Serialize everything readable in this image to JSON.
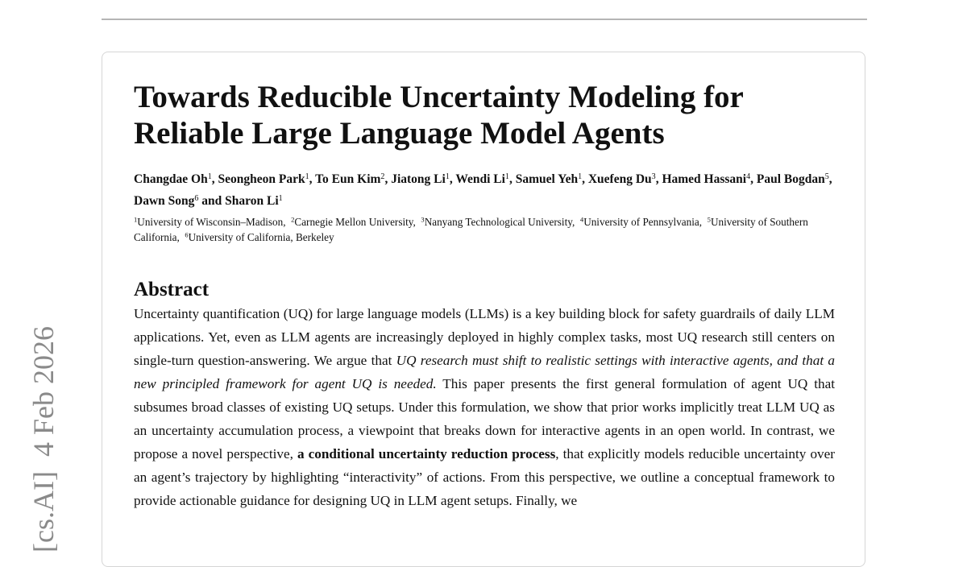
{
  "stamp": "[cs.AI]  4 Feb 2026",
  "title": {
    "line1": "Towards Reducible Uncertainty Modeling for",
    "line2": "Reliable Large Language Model Agents"
  },
  "authors": [
    {
      "name": "Changdae Oh",
      "aff": "1",
      "sep": ", "
    },
    {
      "name": "Seongheon Park",
      "aff": "1",
      "sep": ", "
    },
    {
      "name": "To Eun Kim",
      "aff": "2",
      "sep": ", "
    },
    {
      "name": "Jiatong Li",
      "aff": "1",
      "sep": ", "
    },
    {
      "name": "Wendi Li",
      "aff": "1",
      "sep": ", "
    },
    {
      "name": "Samuel Yeh",
      "aff": "1",
      "sep": ", "
    },
    {
      "name": "Xuefeng Du",
      "aff": "3",
      "sep": ", "
    },
    {
      "name": "Hamed Hassani",
      "aff": "4",
      "sep": ", "
    },
    {
      "name": "Paul Bogdan",
      "aff": "5",
      "sep": ", "
    },
    {
      "name": "Dawn Song",
      "aff": "6",
      "sep": " and "
    },
    {
      "name": "Sharon Li",
      "aff": "1"
    }
  ],
  "affiliations": [
    {
      "id": "1",
      "name": "University of Wisconsin–Madison",
      "sep": ",  "
    },
    {
      "id": "2",
      "name": "Carnegie Mellon University",
      "sep": ",  "
    },
    {
      "id": "3",
      "name": "Nanyang Technological University",
      "sep": ",  "
    },
    {
      "id": "4",
      "name": "University of Pennsylvania",
      "sep": ",  "
    },
    {
      "id": "5",
      "name": "University of Southern California",
      "sep": ",  "
    },
    {
      "id": "6",
      "name": "University of California, Berkeley"
    }
  ],
  "abstract": {
    "heading": "Abstract",
    "segments": [
      {
        "text": "Uncertainty quantification (UQ) for large language models (LLMs) is a key building block for safety guardrails of daily LLM applications. Yet, even as LLM agents are increasingly deployed in highly complex tasks, most UQ research still centers on single-turn question-answering. We argue that "
      },
      {
        "text": "UQ research must shift to realistic settings with interactive agents, and that a new principled framework for agent UQ is needed.",
        "style": "italic"
      },
      {
        "text": " This paper presents the first general formulation of agent UQ that subsumes broad classes of existing UQ setups. Under this formulation, we show that prior works implicitly treat LLM UQ as an uncertainty accumulation process, a viewpoint that breaks down for interactive agents in an open world. In contrast, we propose a novel perspective, "
      },
      {
        "text": "a conditional uncertainty reduction process",
        "style": "bold"
      },
      {
        "text": ", that explicitly models reducible uncertainty over an agent’s trajectory by highlighting “interactivity” of actions. From this perspective, we outline a conceptual framework to provide actionable guidance for designing UQ in LLM agent setups. Finally, we"
      }
    ]
  }
}
